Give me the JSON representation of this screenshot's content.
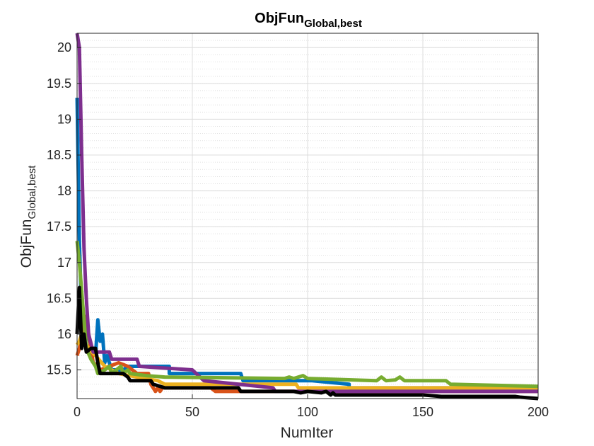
{
  "chart_data": {
    "type": "line",
    "title": {
      "main": "ObjFun",
      "sub": "Global,best"
    },
    "xlabel": "NumIter",
    "ylabel": {
      "main": "ObjFun",
      "sub": "Global,best"
    },
    "xlim": [
      0,
      200
    ],
    "ylim": [
      15.1,
      20.2
    ],
    "xticks": [
      0,
      50,
      100,
      150,
      200
    ],
    "yticks": [
      15.5,
      16,
      16.5,
      17,
      17.5,
      18,
      18.5,
      19,
      19.5,
      20
    ],
    "ytick_labels": [
      "15.5",
      "16",
      "16.5",
      "17",
      "17.5",
      "18",
      "18.5",
      "19",
      "19.5",
      "20"
    ],
    "xtick_labels": [
      "0",
      "50",
      "100",
      "150",
      "200"
    ],
    "grid": true,
    "minor_grid": true,
    "series": [
      {
        "color": "#0072BD",
        "points": [
          [
            0,
            19.3
          ],
          [
            1,
            17.3
          ],
          [
            2,
            16.2
          ],
          [
            4,
            16.1
          ],
          [
            6,
            15.8
          ],
          [
            8,
            15.7
          ],
          [
            9,
            16.2
          ],
          [
            10,
            15.9
          ],
          [
            11,
            16.0
          ],
          [
            12,
            15.6
          ],
          [
            13,
            15.7
          ],
          [
            15,
            15.5
          ],
          [
            20,
            15.5
          ],
          [
            22,
            15.55
          ],
          [
            40,
            15.55
          ],
          [
            40,
            15.45
          ],
          [
            55,
            15.45
          ],
          [
            71,
            15.45
          ],
          [
            72,
            15.35
          ],
          [
            102,
            15.35
          ],
          [
            118,
            15.3
          ],
          [
            118,
            15.25
          ],
          [
            200,
            15.25
          ]
        ]
      },
      {
        "color": "#D95319",
        "points": [
          [
            0,
            15.7
          ],
          [
            1,
            15.8
          ],
          [
            2,
            16.0
          ],
          [
            3,
            16.2
          ],
          [
            4,
            16.25
          ],
          [
            5,
            16.0
          ],
          [
            7,
            15.6
          ],
          [
            9,
            15.55
          ],
          [
            10,
            15.5
          ],
          [
            14,
            15.55
          ],
          [
            18,
            15.6
          ],
          [
            22,
            15.55
          ],
          [
            26,
            15.45
          ],
          [
            31,
            15.45
          ],
          [
            32,
            15.3
          ],
          [
            33,
            15.25
          ],
          [
            34,
            15.2
          ],
          [
            35,
            15.25
          ],
          [
            36,
            15.2
          ],
          [
            37,
            15.25
          ],
          [
            40,
            15.25
          ],
          [
            45,
            15.25
          ],
          [
            58,
            15.25
          ],
          [
            60,
            15.2
          ],
          [
            200,
            15.2
          ]
        ]
      },
      {
        "color": "#EDB120",
        "points": [
          [
            0,
            15.85
          ],
          [
            1,
            15.9
          ],
          [
            2,
            16.0
          ],
          [
            3,
            15.9
          ],
          [
            5,
            15.8
          ],
          [
            8,
            15.7
          ],
          [
            12,
            15.55
          ],
          [
            18,
            15.45
          ],
          [
            26,
            15.4
          ],
          [
            35,
            15.35
          ],
          [
            38,
            15.3
          ],
          [
            58,
            15.3
          ],
          [
            60,
            15.3
          ],
          [
            95,
            15.3
          ],
          [
            96,
            15.25
          ],
          [
            200,
            15.25
          ]
        ]
      },
      {
        "color": "#7E2F8E",
        "points": [
          [
            0,
            20.2
          ],
          [
            1,
            20.0
          ],
          [
            2,
            18.5
          ],
          [
            3,
            17.2
          ],
          [
            4,
            16.5
          ],
          [
            5,
            16.0
          ],
          [
            7,
            15.75
          ],
          [
            14,
            15.75
          ],
          [
            15,
            15.65
          ],
          [
            26,
            15.65
          ],
          [
            27,
            15.55
          ],
          [
            50,
            15.5
          ],
          [
            55,
            15.35
          ],
          [
            70,
            15.3
          ],
          [
            85,
            15.25
          ],
          [
            86,
            15.2
          ],
          [
            200,
            15.2
          ]
        ]
      },
      {
        "color": "#77AC30",
        "points": [
          [
            0,
            17.3
          ],
          [
            1,
            17.0
          ],
          [
            2,
            16.6
          ],
          [
            3,
            16.2
          ],
          [
            4,
            15.8
          ],
          [
            6,
            15.65
          ],
          [
            8,
            15.55
          ],
          [
            9,
            15.45
          ],
          [
            12,
            15.5
          ],
          [
            14,
            15.55
          ],
          [
            15,
            15.45
          ],
          [
            17,
            15.5
          ],
          [
            19,
            15.55
          ],
          [
            20,
            15.45
          ],
          [
            22,
            15.5
          ],
          [
            23,
            15.45
          ],
          [
            30,
            15.42
          ],
          [
            38,
            15.4
          ],
          [
            90,
            15.38
          ],
          [
            92,
            15.4
          ],
          [
            94,
            15.38
          ],
          [
            98,
            15.42
          ],
          [
            100,
            15.38
          ],
          [
            130,
            15.35
          ],
          [
            132,
            15.4
          ],
          [
            134,
            15.35
          ],
          [
            138,
            15.36
          ],
          [
            140,
            15.4
          ],
          [
            142,
            15.35
          ],
          [
            160,
            15.35
          ],
          [
            162,
            15.3
          ],
          [
            200,
            15.27
          ]
        ]
      },
      {
        "color": "#000000",
        "points": [
          [
            0,
            16.0
          ],
          [
            1,
            16.65
          ],
          [
            2,
            15.8
          ],
          [
            3,
            16.0
          ],
          [
            4,
            15.75
          ],
          [
            6,
            15.8
          ],
          [
            8,
            15.8
          ],
          [
            9,
            15.6
          ],
          [
            10,
            15.45
          ],
          [
            16,
            15.45
          ],
          [
            20,
            15.45
          ],
          [
            22,
            15.4
          ],
          [
            23,
            15.35
          ],
          [
            32,
            15.35
          ],
          [
            33,
            15.3
          ],
          [
            38,
            15.25
          ],
          [
            70,
            15.25
          ],
          [
            71,
            15.2
          ],
          [
            94,
            15.2
          ],
          [
            97,
            15.18
          ],
          [
            100,
            15.2
          ],
          [
            106,
            15.18
          ],
          [
            108,
            15.2
          ],
          [
            110,
            15.15
          ],
          [
            111,
            15.18
          ],
          [
            112,
            15.15
          ],
          [
            150,
            15.15
          ],
          [
            158,
            15.13
          ],
          [
            190,
            15.13
          ],
          [
            192,
            15.12
          ],
          [
            200,
            15.1
          ]
        ]
      }
    ]
  }
}
